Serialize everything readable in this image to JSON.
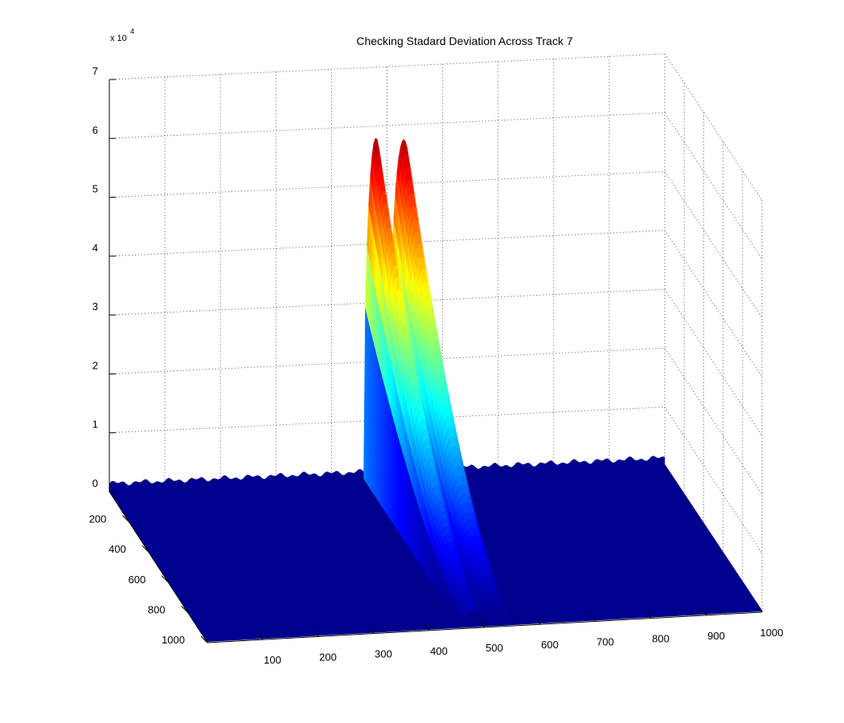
{
  "chart_data": {
    "type": "surface",
    "title": "Checking Stadard Deviation Across Track 7",
    "z_exponent_label": "x 10",
    "z_exponent": "4",
    "z_tick_labels": [
      "0",
      "1",
      "2",
      "3",
      "4",
      "5",
      "6",
      "7"
    ],
    "z_ticks": [
      0,
      1,
      2,
      3,
      4,
      5,
      6,
      7
    ],
    "z_range": [
      0,
      70000
    ],
    "x_tick_labels": [
      "100",
      "200",
      "300",
      "400",
      "500",
      "600",
      "700",
      "800",
      "900",
      "1000"
    ],
    "x_ticks": [
      100,
      200,
      300,
      400,
      500,
      600,
      700,
      800,
      900,
      1000
    ],
    "x_range": [
      0,
      1000
    ],
    "y_tick_labels": [
      "200",
      "400",
      "600",
      "800",
      "1000"
    ],
    "y_ticks": [
      200,
      400,
      600,
      800,
      1000
    ],
    "y_range": [
      0,
      1000
    ],
    "baseline_value": 200,
    "peaks": [
      {
        "x_center": 480,
        "x_halfwidth": 22,
        "z_max": 58000,
        "z_min_far_y": 3000
      },
      {
        "x_center": 530,
        "x_halfwidth": 28,
        "z_max": 57500,
        "z_min_far_y": 1000
      }
    ],
    "grid": true,
    "colormap": "jet",
    "surface_base_color": "#00008F"
  }
}
